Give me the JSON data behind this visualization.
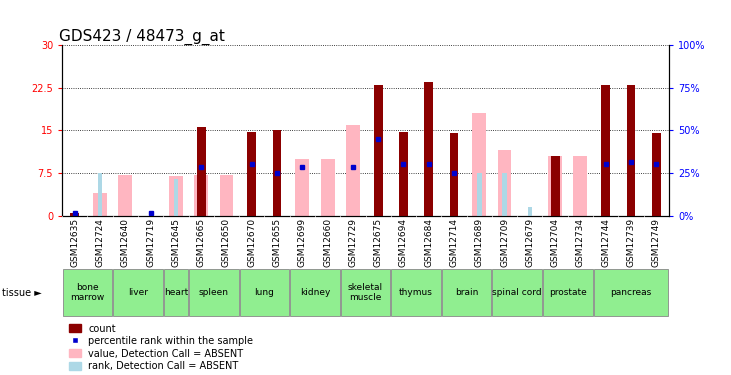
{
  "title": "GDS423 / 48473_g_at",
  "samples": [
    "GSM12635",
    "GSM12724",
    "GSM12640",
    "GSM12719",
    "GSM12645",
    "GSM12665",
    "GSM12650",
    "GSM12670",
    "GSM12655",
    "GSM12699",
    "GSM12660",
    "GSM12729",
    "GSM12675",
    "GSM12694",
    "GSM12684",
    "GSM12714",
    "GSM12689",
    "GSM12709",
    "GSM12679",
    "GSM12704",
    "GSM12734",
    "GSM12744",
    "GSM12739",
    "GSM12749"
  ],
  "tissues": [
    {
      "name": "bone\nmarrow",
      "start": 0,
      "end": 2
    },
    {
      "name": "liver",
      "start": 2,
      "end": 4
    },
    {
      "name": "heart",
      "start": 4,
      "end": 5
    },
    {
      "name": "spleen",
      "start": 5,
      "end": 7
    },
    {
      "name": "lung",
      "start": 7,
      "end": 9
    },
    {
      "name": "kidney",
      "start": 9,
      "end": 11
    },
    {
      "name": "skeletal\nmuscle",
      "start": 11,
      "end": 13
    },
    {
      "name": "thymus",
      "start": 13,
      "end": 15
    },
    {
      "name": "brain",
      "start": 15,
      "end": 17
    },
    {
      "name": "spinal cord",
      "start": 17,
      "end": 19
    },
    {
      "name": "prostate",
      "start": 19,
      "end": 21
    },
    {
      "name": "pancreas",
      "start": 21,
      "end": 24
    }
  ],
  "red_bars": [
    0.5,
    0,
    0,
    0,
    0,
    15.5,
    0,
    14.7,
    15.0,
    0,
    0,
    0,
    23.0,
    14.7,
    23.5,
    14.6,
    0,
    0,
    0,
    10.5,
    0,
    23.0,
    23.0,
    14.6
  ],
  "pink_bars": [
    0,
    4.0,
    7.2,
    0,
    7.0,
    7.2,
    7.2,
    0,
    0,
    10.0,
    10.0,
    16.0,
    0,
    0,
    0,
    0,
    18.0,
    11.5,
    0,
    10.5,
    10.5,
    0,
    0,
    0
  ],
  "blue_squares": [
    0.5,
    0,
    0,
    0.5,
    0,
    8.5,
    0,
    9.0,
    7.5,
    8.5,
    0,
    8.5,
    13.5,
    9.0,
    9.0,
    7.5,
    0,
    0,
    0,
    0,
    0,
    9.0,
    9.5,
    9.0
  ],
  "light_blue_bars": [
    0,
    7.5,
    0,
    0,
    6.5,
    0,
    0,
    0,
    7.5,
    0,
    0,
    0,
    0,
    0,
    0,
    7.5,
    7.5,
    7.5,
    1.5,
    7.5,
    0,
    0,
    0,
    0
  ],
  "ylim_left": [
    0,
    30
  ],
  "ylim_right": [
    0,
    100
  ],
  "yticks_left": [
    0,
    7.5,
    15,
    22.5,
    30
  ],
  "yticks_right": [
    0,
    25,
    50,
    75,
    100
  ],
  "red_color": "#8B0000",
  "pink_color": "#FFB6C1",
  "blue_color": "#0000CD",
  "light_blue_color": "#ADD8E6",
  "tissue_color": "#90EE90",
  "sample_bg_color": "#C8C8C8",
  "title_fontsize": 11,
  "tick_fontsize": 7,
  "tissue_fontsize": 6.5,
  "legend_fontsize": 7,
  "pink_bar_width": 0.55,
  "red_bar_width": 0.35,
  "lb_bar_width": 0.18
}
